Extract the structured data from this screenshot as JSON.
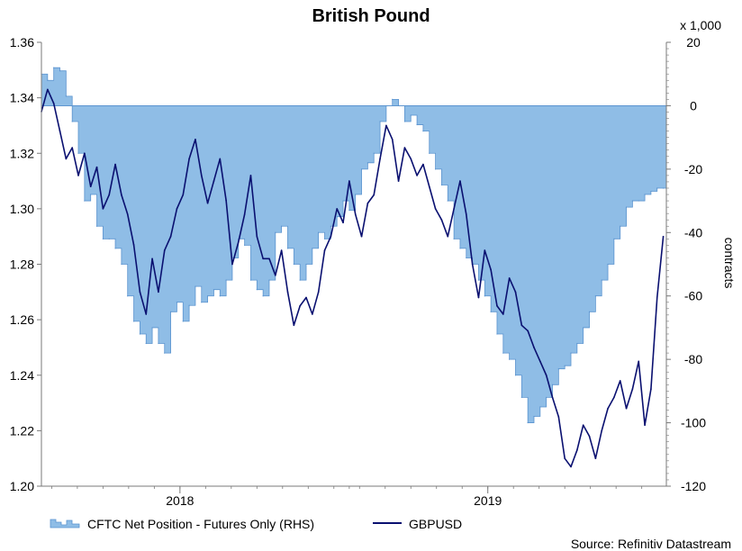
{
  "chart_data": {
    "type": "line",
    "title": "British Pound",
    "source": "Source: Refinitiv Datastream",
    "left_axis": {
      "ylim": [
        1.2,
        1.36
      ],
      "ticks": [
        "1.20",
        "1.22",
        "1.24",
        "1.26",
        "1.28",
        "1.30",
        "1.32",
        "1.34",
        "1.36"
      ]
    },
    "right_axis": {
      "label": "contracts",
      "multiplier_label": "x 1,000",
      "ylim": [
        -120,
        20
      ],
      "ticks": [
        "-120",
        "-100",
        "-80",
        "-60",
        "-40",
        "-20",
        "0",
        "20"
      ]
    },
    "x_axis": {
      "range": [
        2017.55,
        2019.58
      ],
      "tick_labels": [
        {
          "label": "2018",
          "x": 2018.0
        },
        {
          "label": "2019",
          "x": 2019.0
        }
      ],
      "year_separators": [
        2018.0,
        2019.0
      ]
    },
    "grid": false,
    "legend_position": "bottom-left",
    "colors": {
      "cftc_fill": "#8fbde6",
      "cftc_edge": "#5a93cf",
      "gbpusd_line": "#0a1070",
      "axis": "#7a7a7a"
    },
    "series": [
      {
        "name": "CFTC Net Position - Futures Only (RHS)",
        "axis": "right",
        "style": "step-area",
        "x": [
          2017.55,
          2017.57,
          2017.59,
          2017.61,
          2017.63,
          2017.65,
          2017.67,
          2017.69,
          2017.71,
          2017.73,
          2017.75,
          2017.77,
          2017.79,
          2017.81,
          2017.83,
          2017.85,
          2017.87,
          2017.89,
          2017.91,
          2017.93,
          2017.95,
          2017.97,
          2017.99,
          2018.01,
          2018.03,
          2018.05,
          2018.07,
          2018.09,
          2018.11,
          2018.13,
          2018.15,
          2018.17,
          2018.19,
          2018.21,
          2018.23,
          2018.25,
          2018.27,
          2018.29,
          2018.31,
          2018.33,
          2018.35,
          2018.37,
          2018.39,
          2018.41,
          2018.43,
          2018.45,
          2018.47,
          2018.49,
          2018.51,
          2018.53,
          2018.55,
          2018.57,
          2018.59,
          2018.61,
          2018.63,
          2018.65,
          2018.67,
          2018.69,
          2018.71,
          2018.73,
          2018.75,
          2018.77,
          2018.79,
          2018.81,
          2018.83,
          2018.85,
          2018.87,
          2018.89,
          2018.91,
          2018.93,
          2018.95,
          2018.97,
          2018.99,
          2019.01,
          2019.03,
          2019.05,
          2019.07,
          2019.09,
          2019.11,
          2019.13,
          2019.15,
          2019.17,
          2019.19,
          2019.21,
          2019.23,
          2019.25,
          2019.27,
          2019.29,
          2019.31,
          2019.33,
          2019.35,
          2019.37,
          2019.39,
          2019.41,
          2019.43,
          2019.45,
          2019.47,
          2019.49,
          2019.51,
          2019.53,
          2019.55,
          2019.57
        ],
        "values": [
          10,
          8,
          12,
          11,
          3,
          -5,
          -15,
          -30,
          -28,
          -38,
          -42,
          -42,
          -45,
          -50,
          -60,
          -68,
          -72,
          -75,
          -70,
          -75,
          -78,
          -65,
          -62,
          -68,
          -63,
          -57,
          -62,
          -60,
          -58,
          -60,
          -55,
          -48,
          -42,
          -44,
          -55,
          -58,
          -60,
          -55,
          -40,
          -38,
          -45,
          -50,
          -55,
          -50,
          -45,
          -40,
          -42,
          -38,
          -35,
          -30,
          -33,
          -28,
          -20,
          -18,
          -15,
          -5,
          0,
          2,
          0,
          -5,
          -3,
          -6,
          -8,
          -15,
          -20,
          -25,
          -30,
          -42,
          -45,
          -48,
          -50,
          -55,
          -60,
          -65,
          -72,
          -78,
          -80,
          -85,
          -92,
          -100,
          -98,
          -95,
          -92,
          -88,
          -83,
          -82,
          -78,
          -75,
          -70,
          -65,
          -60,
          -55,
          -50,
          -42,
          -38,
          -32,
          -30,
          -30,
          -28,
          -27,
          -26,
          -26
        ]
      },
      {
        "name": "GBPUSD",
        "axis": "left",
        "style": "line",
        "x": [
          2017.55,
          2017.57,
          2017.59,
          2017.61,
          2017.63,
          2017.65,
          2017.67,
          2017.69,
          2017.71,
          2017.73,
          2017.75,
          2017.77,
          2017.79,
          2017.81,
          2017.83,
          2017.85,
          2017.87,
          2017.89,
          2017.91,
          2017.93,
          2017.95,
          2017.97,
          2017.99,
          2018.01,
          2018.03,
          2018.05,
          2018.07,
          2018.09,
          2018.11,
          2018.13,
          2018.15,
          2018.17,
          2018.19,
          2018.21,
          2018.23,
          2018.25,
          2018.27,
          2018.29,
          2018.31,
          2018.33,
          2018.35,
          2018.37,
          2018.39,
          2018.41,
          2018.43,
          2018.45,
          2018.47,
          2018.49,
          2018.51,
          2018.53,
          2018.55,
          2018.57,
          2018.59,
          2018.61,
          2018.63,
          2018.65,
          2018.67,
          2018.69,
          2018.71,
          2018.73,
          2018.75,
          2018.77,
          2018.79,
          2018.81,
          2018.83,
          2018.85,
          2018.87,
          2018.89,
          2018.91,
          2018.93,
          2018.95,
          2018.97,
          2018.99,
          2019.01,
          2019.03,
          2019.05,
          2019.07,
          2019.09,
          2019.11,
          2019.13,
          2019.15,
          2019.17,
          2019.19,
          2019.21,
          2019.23,
          2019.25,
          2019.27,
          2019.29,
          2019.31,
          2019.33,
          2019.35,
          2019.37,
          2019.39,
          2019.41,
          2019.43,
          2019.45,
          2019.47,
          2019.49,
          2019.51,
          2019.53,
          2019.55,
          2019.57
        ],
        "values": [
          1.335,
          1.343,
          1.338,
          1.328,
          1.318,
          1.322,
          1.312,
          1.32,
          1.308,
          1.315,
          1.3,
          1.305,
          1.316,
          1.305,
          1.298,
          1.287,
          1.27,
          1.262,
          1.282,
          1.27,
          1.285,
          1.29,
          1.3,
          1.305,
          1.318,
          1.325,
          1.312,
          1.302,
          1.31,
          1.318,
          1.303,
          1.28,
          1.288,
          1.298,
          1.312,
          1.29,
          1.282,
          1.282,
          1.276,
          1.285,
          1.27,
          1.258,
          1.265,
          1.268,
          1.262,
          1.27,
          1.285,
          1.29,
          1.3,
          1.295,
          1.31,
          1.298,
          1.29,
          1.302,
          1.305,
          1.318,
          1.33,
          1.325,
          1.31,
          1.322,
          1.318,
          1.312,
          1.316,
          1.308,
          1.3,
          1.296,
          1.29,
          1.3,
          1.31,
          1.298,
          1.28,
          1.268,
          1.285,
          1.278,
          1.265,
          1.262,
          1.275,
          1.27,
          1.258,
          1.256,
          1.25,
          1.245,
          1.24,
          1.232,
          1.225,
          1.21,
          1.207,
          1.213,
          1.222,
          1.218,
          1.21,
          1.22,
          1.228,
          1.232,
          1.238,
          1.228,
          1.235,
          1.245,
          1.222,
          1.235,
          1.268,
          1.29
        ]
      }
    ]
  },
  "legend": {
    "items": [
      {
        "label": "CFTC Net Position - Futures Only (RHS)"
      },
      {
        "label": "GBPUSD"
      }
    ]
  }
}
